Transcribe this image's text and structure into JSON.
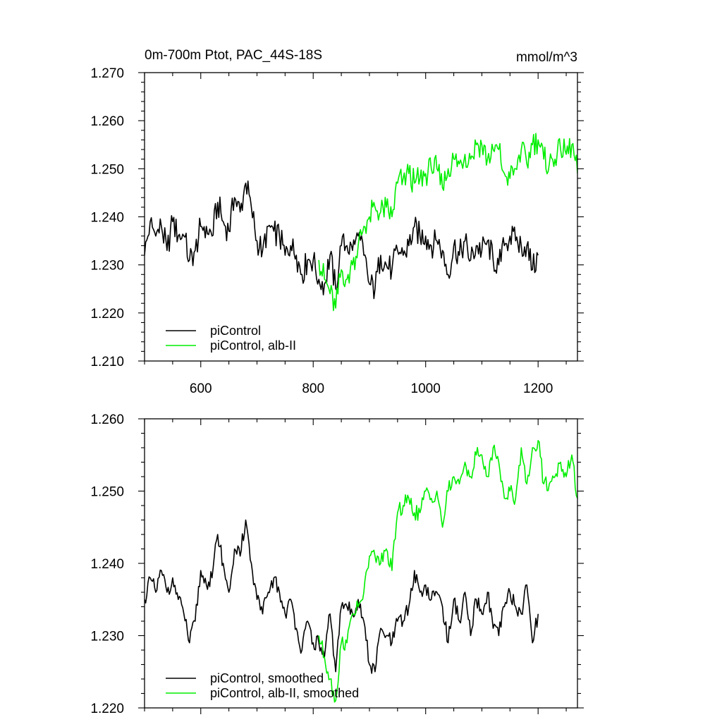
{
  "chart_data": [
    {
      "type": "line",
      "title": "0m-700m Ptot, PAC_44S-18S",
      "units": "mmol/m^3",
      "xlim": [
        500,
        1270
      ],
      "ylim": [
        1.21,
        1.27
      ],
      "x_ticks": [
        600,
        800,
        1000,
        1200
      ],
      "x_tick_labels": [
        "600",
        "800",
        "1000",
        "1200"
      ],
      "y_ticks": [
        1.21,
        1.22,
        1.23,
        1.24,
        1.25,
        1.26,
        1.27
      ],
      "y_tick_labels": [
        "1.210",
        "1.220",
        "1.230",
        "1.240",
        "1.250",
        "1.260",
        "1.270"
      ],
      "grid": false,
      "legend_position": "bottom-left",
      "series": [
        {
          "name": "piControl",
          "color": "#000000",
          "x": [
            500,
            510,
            520,
            530,
            540,
            550,
            560,
            570,
            580,
            590,
            600,
            610,
            620,
            630,
            640,
            650,
            660,
            670,
            680,
            690,
            700,
            710,
            720,
            730,
            740,
            750,
            760,
            770,
            780,
            790,
            800,
            810,
            820,
            830,
            840,
            850,
            860,
            870,
            880,
            890,
            900,
            910,
            920,
            930,
            940,
            950,
            960,
            970,
            980,
            990,
            1000,
            1010,
            1020,
            1030,
            1040,
            1050,
            1060,
            1070,
            1080,
            1090,
            1100,
            1110,
            1120,
            1130,
            1140,
            1150,
            1160,
            1170,
            1180,
            1190,
            1200
          ],
          "y": [
            1.232,
            1.239,
            1.236,
            1.238,
            1.233,
            1.239,
            1.236,
            1.236,
            1.231,
            1.233,
            1.238,
            1.238,
            1.236,
            1.243,
            1.239,
            1.237,
            1.244,
            1.241,
            1.247,
            1.242,
            1.235,
            1.233,
            1.238,
            1.237,
            1.236,
            1.232,
            1.234,
            1.232,
            1.228,
            1.231,
            1.231,
            1.227,
            1.226,
            1.232,
            1.225,
            1.234,
            1.234,
            1.233,
            1.236,
            1.232,
            1.226,
            1.225,
            1.232,
            1.23,
            1.229,
            1.233,
            1.232,
            1.234,
            1.238,
            1.236,
            1.236,
            1.234,
            1.235,
            1.233,
            1.228,
            1.234,
            1.232,
            1.235,
            1.231,
            1.234,
            1.233,
            1.235,
            1.231,
            1.23,
            1.234,
            1.236,
            1.235,
            1.234,
            1.234,
            1.229,
            1.232
          ]
        },
        {
          "name": "piControl, alb-II",
          "color": "#00ee00",
          "x": [
            810,
            820,
            830,
            840,
            850,
            860,
            870,
            880,
            890,
            900,
            910,
            920,
            930,
            940,
            950,
            960,
            970,
            980,
            990,
            1000,
            1010,
            1020,
            1030,
            1040,
            1050,
            1060,
            1070,
            1080,
            1090,
            1100,
            1110,
            1120,
            1130,
            1140,
            1150,
            1160,
            1170,
            1180,
            1190,
            1200,
            1210,
            1220,
            1230,
            1240,
            1250,
            1260,
            1270
          ],
          "y": [
            1.231,
            1.227,
            1.224,
            1.221,
            1.229,
            1.227,
            1.23,
            1.234,
            1.238,
            1.24,
            1.242,
            1.241,
            1.242,
            1.24,
            1.247,
            1.248,
            1.249,
            1.247,
            1.248,
            1.249,
            1.25,
            1.25,
            1.246,
            1.25,
            1.252,
            1.251,
            1.253,
            1.252,
            1.255,
            1.255,
            1.252,
            1.254,
            1.254,
            1.249,
            1.248,
            1.25,
            1.254,
            1.251,
            1.255,
            1.256,
            1.252,
            1.251,
            1.252,
            1.254,
            1.253,
            1.255,
            1.249
          ]
        }
      ]
    },
    {
      "type": "line",
      "title": "",
      "xlim": [
        500,
        1270
      ],
      "ylim": [
        1.22,
        1.26
      ],
      "x_ticks": [
        600,
        800,
        1000,
        1200
      ],
      "y_ticks": [
        1.22,
        1.23,
        1.24,
        1.25,
        1.26
      ],
      "y_tick_labels": [
        "1.220",
        "1.230",
        "1.240",
        "1.250",
        "1.260"
      ],
      "grid": false,
      "legend_position": "bottom-left",
      "series": [
        {
          "name": "piControl, smoothed",
          "color": "#000000",
          "x": [
            500,
            510,
            520,
            530,
            540,
            550,
            560,
            570,
            580,
            590,
            600,
            610,
            620,
            630,
            640,
            650,
            660,
            670,
            680,
            690,
            700,
            710,
            720,
            730,
            740,
            750,
            760,
            770,
            780,
            790,
            800,
            810,
            820,
            830,
            840,
            850,
            860,
            870,
            880,
            890,
            900,
            910,
            920,
            930,
            940,
            950,
            960,
            970,
            980,
            990,
            1000,
            1010,
            1020,
            1030,
            1040,
            1050,
            1060,
            1070,
            1080,
            1090,
            1100,
            1110,
            1120,
            1130,
            1140,
            1150,
            1160,
            1170,
            1180,
            1190,
            1200
          ],
          "y": [
            1.235,
            1.238,
            1.236,
            1.239,
            1.236,
            1.238,
            1.235,
            1.233,
            1.229,
            1.232,
            1.239,
            1.237,
            1.238,
            1.244,
            1.24,
            1.236,
            1.242,
            1.241,
            1.246,
            1.24,
            1.235,
            1.233,
            1.236,
            1.238,
            1.236,
            1.233,
            1.235,
            1.231,
            1.228,
            1.232,
            1.229,
            1.229,
            1.227,
            1.233,
            1.225,
            1.234,
            1.234,
            1.233,
            1.235,
            1.232,
            1.226,
            1.225,
            1.231,
            1.23,
            1.229,
            1.232,
            1.232,
            1.234,
            1.239,
            1.236,
            1.237,
            1.235,
            1.236,
            1.234,
            1.229,
            1.235,
            1.232,
            1.236,
            1.23,
            1.235,
            1.233,
            1.236,
            1.231,
            1.23,
            1.234,
            1.236,
            1.234,
            1.233,
            1.237,
            1.229,
            1.233
          ]
        },
        {
          "name": "piControl, alb-II, smoothed",
          "color": "#00ee00",
          "x": [
            810,
            820,
            830,
            840,
            850,
            860,
            870,
            880,
            890,
            900,
            910,
            920,
            930,
            940,
            950,
            960,
            970,
            980,
            990,
            1000,
            1010,
            1020,
            1030,
            1040,
            1050,
            1060,
            1070,
            1080,
            1090,
            1100,
            1110,
            1120,
            1130,
            1140,
            1150,
            1160,
            1170,
            1180,
            1190,
            1200,
            1210,
            1220,
            1230,
            1240,
            1250,
            1260,
            1270
          ],
          "y": [
            1.23,
            1.227,
            1.224,
            1.221,
            1.229,
            1.229,
            1.233,
            1.234,
            1.236,
            1.241,
            1.241,
            1.24,
            1.242,
            1.239,
            1.247,
            1.248,
            1.249,
            1.247,
            1.247,
            1.25,
            1.249,
            1.25,
            1.245,
            1.25,
            1.252,
            1.251,
            1.254,
            1.252,
            1.255,
            1.255,
            1.252,
            1.256,
            1.254,
            1.249,
            1.25,
            1.249,
            1.256,
            1.251,
            1.256,
            1.257,
            1.251,
            1.251,
            1.252,
            1.254,
            1.252,
            1.255,
            1.249
          ]
        }
      ]
    }
  ]
}
